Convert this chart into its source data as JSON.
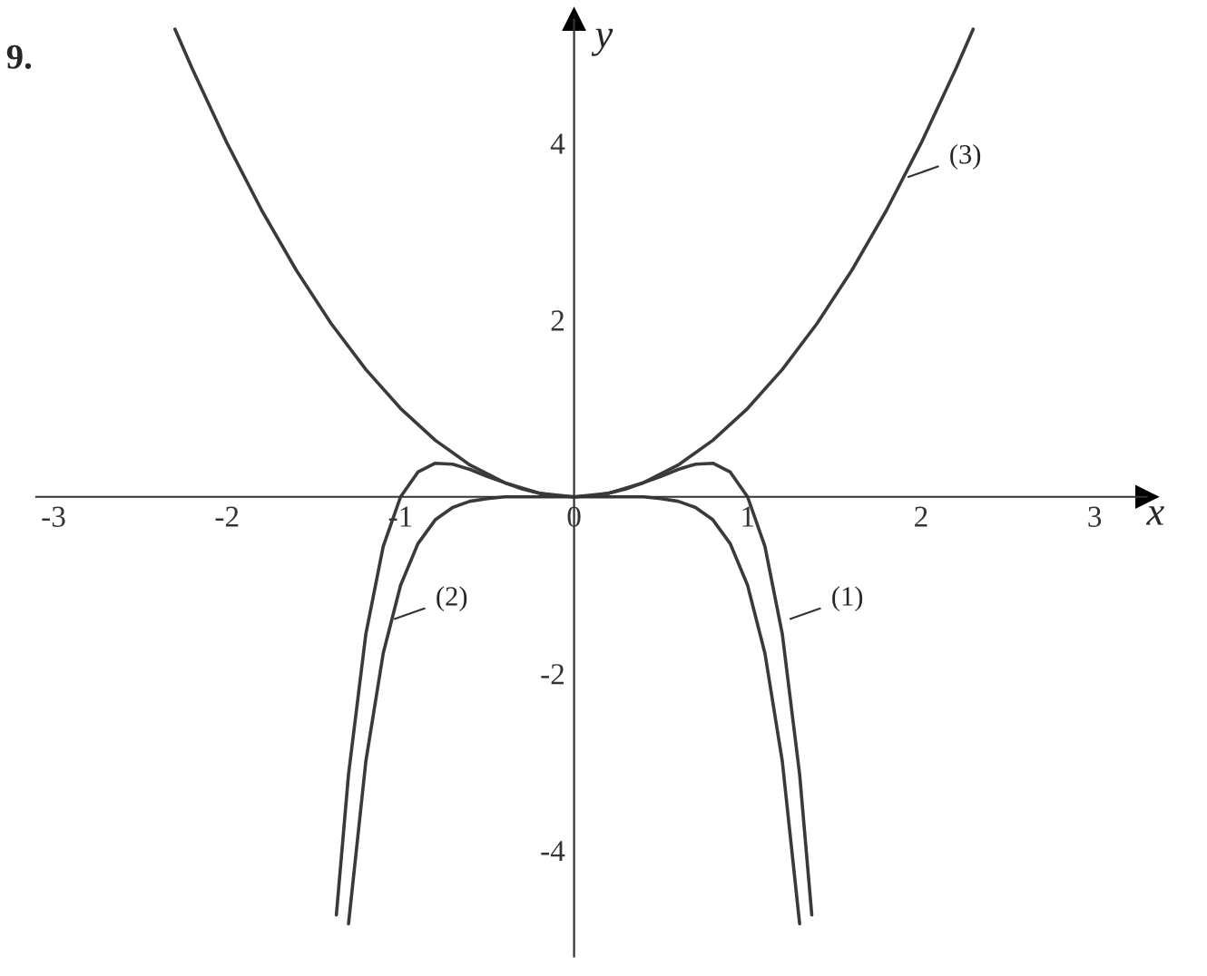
{
  "chart_data": {
    "type": "line",
    "xlabel": "x",
    "ylabel": "y",
    "xlim": [
      -3.1,
      3.3
    ],
    "ylim": [
      -5.2,
      5.4
    ],
    "xticks": [
      {
        "value": -3,
        "label": "-3"
      },
      {
        "value": -2,
        "label": "-2"
      },
      {
        "value": -1,
        "label": "-1"
      },
      0,
      1,
      2,
      3
    ],
    "yticks": [
      {
        "value": -4,
        "label": "-4"
      },
      {
        "value": -2,
        "label": "-2"
      },
      2,
      4
    ],
    "grid": false,
    "marker": "none",
    "line_style": "solid",
    "series": [
      {
        "color": "#3a3a3a",
        "x": [
          -1.37,
          -1.3,
          -1.2,
          -1.1,
          -1.0,
          -0.9,
          -0.8,
          -0.7,
          -0.6,
          -0.5,
          -0.4,
          -0.3,
          -0.2,
          -0.1,
          0,
          0.1,
          0.2,
          0.3,
          0.4,
          0.5,
          0.6,
          0.7,
          0.8,
          0.9,
          1.0,
          1.1,
          1.2,
          1.3,
          1.37
        ],
        "values": [
          -4.73,
          -3.14,
          -1.55,
          -0.56,
          0,
          0.28,
          0.38,
          0.37,
          0.31,
          0.23,
          0.16,
          0.09,
          0.04,
          0.01,
          0,
          0.01,
          0.04,
          0.09,
          0.16,
          0.23,
          0.31,
          0.37,
          0.38,
          0.28,
          0,
          -0.56,
          -1.55,
          -3.14,
          -4.73
        ]
      },
      {
        "color": "#3a3a3a",
        "x": [
          -1.3,
          -1.2,
          -1.1,
          -1.0,
          -0.9,
          -0.8,
          -0.7,
          -0.6,
          -0.5,
          -0.4,
          -0.3,
          -0.2,
          -0.1,
          0,
          0.1,
          0.2,
          0.3,
          0.4,
          0.5,
          0.6,
          0.7,
          0.8,
          0.9,
          1.0,
          1.1,
          1.2,
          1.3
        ],
        "values": [
          -4.83,
          -2.99,
          -1.77,
          -1,
          -0.53,
          -0.26,
          -0.12,
          -0.05,
          -0.02,
          0,
          0,
          0,
          0,
          0,
          0,
          0,
          0,
          0,
          -0.02,
          -0.05,
          -0.12,
          -0.26,
          -0.53,
          -1,
          -1.77,
          -2.99,
          -4.83
        ]
      },
      {
        "color": "#3a3a3a",
        "x": [
          -2.3,
          -2.2,
          -2.0,
          -1.8,
          -1.6,
          -1.4,
          -1.2,
          -1.0,
          -0.8,
          -0.6,
          -0.4,
          -0.2,
          0,
          0.2,
          0.4,
          0.6,
          0.8,
          1.0,
          1.2,
          1.4,
          1.6,
          1.8,
          2.0,
          2.2,
          2.3
        ],
        "values": [
          5.29,
          4.84,
          4,
          3.24,
          2.56,
          1.96,
          1.44,
          1,
          0.64,
          0.36,
          0.16,
          0.04,
          0,
          0.04,
          0.16,
          0.36,
          0.64,
          1,
          1.44,
          1.96,
          2.56,
          3.24,
          4,
          4.84,
          5.29
        ]
      }
    ],
    "annotations": [
      "9.",
      {
        "text": "(1)",
        "x": 1.22,
        "y": -1.4
      },
      {
        "text": "(2)",
        "x": -1.06,
        "y": -1.4
      },
      {
        "text": "(3)",
        "x": 1.9,
        "y": 3.6
      }
    ]
  }
}
